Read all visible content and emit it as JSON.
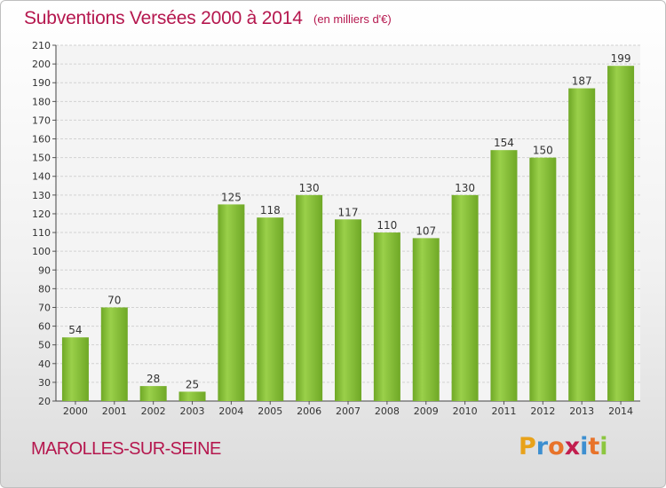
{
  "title": "Subventions Versées 2000 à 2014",
  "subtitle": "(en milliers d'€)",
  "city": "MAROLLES-SUR-SEINE",
  "logo": {
    "letters": [
      "P",
      "r",
      "o",
      "x",
      "i",
      "t",
      "i"
    ],
    "colors": [
      "#e8a21a",
      "#3d8fd0",
      "#e8732a",
      "#c21e4e",
      "#3d8fd0",
      "#e8732a",
      "#8cc63f"
    ]
  },
  "colors": {
    "bar": "#7cb82f",
    "bar_light": "#9ad04a",
    "text_accent": "#b5174e"
  },
  "chart_data": {
    "type": "bar",
    "categories": [
      "2000",
      "2001",
      "2002",
      "2003",
      "2004",
      "2005",
      "2006",
      "2007",
      "2008",
      "2009",
      "2010",
      "2011",
      "2012",
      "2013",
      "2014"
    ],
    "values": [
      54,
      70,
      28,
      25,
      125,
      118,
      130,
      117,
      110,
      107,
      130,
      154,
      150,
      187,
      199
    ],
    "value_labels": [
      "54",
      "70",
      "28",
      "25",
      "125",
      "118",
      "130",
      "117",
      "110",
      "107",
      "130",
      "154",
      "150",
      "187",
      "199"
    ],
    "y_ticks": [
      "20",
      "30",
      "40",
      "50",
      "60",
      "70",
      "80",
      "90",
      "100",
      "110",
      "120",
      "130",
      "140",
      "150",
      "160",
      "170",
      "180",
      "190",
      "200",
      "210"
    ],
    "ylim": [
      20,
      210
    ],
    "ystep": 10,
    "grid": true
  }
}
